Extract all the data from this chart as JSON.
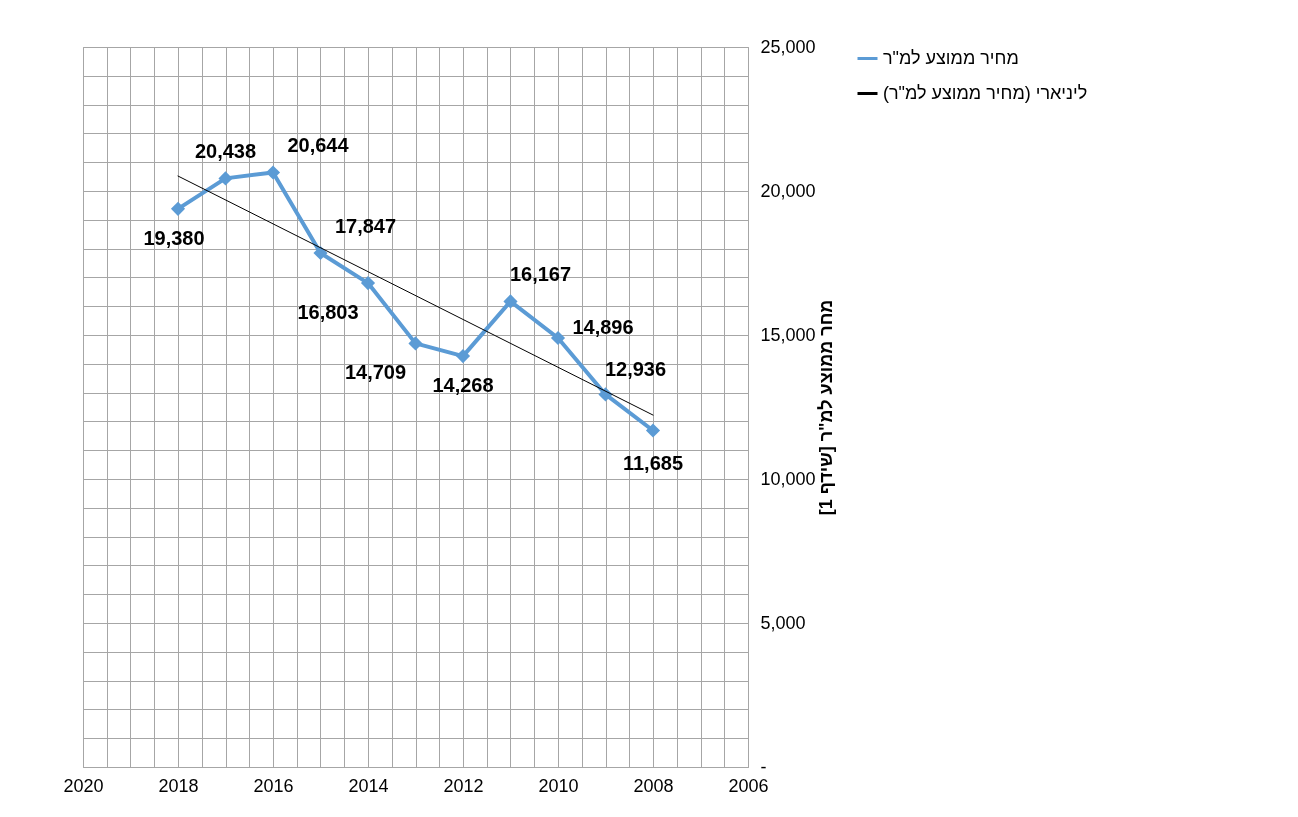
{
  "chart_data": {
    "type": "line",
    "ylabel": "מחר ממוצע למ\"ר [שידף 1]",
    "xlim": [
      2020,
      2006
    ],
    "xticks": [
      2020,
      {
        "value": 2019.5,
        "label": null
      },
      {
        "value": 2019,
        "label": null
      },
      {
        "value": 2018.5,
        "label": null
      },
      2018,
      {
        "value": 2017.5,
        "label": null
      },
      {
        "value": 2017,
        "label": null
      },
      {
        "value": 2016.5,
        "label": null
      },
      2016,
      {
        "value": 2015.5,
        "label": null
      },
      {
        "value": 2015,
        "label": null
      },
      {
        "value": 2014.5,
        "label": null
      },
      2014,
      {
        "value": 2013.5,
        "label": null
      },
      {
        "value": 2013,
        "label": null
      },
      {
        "value": 2012.5,
        "label": null
      },
      2012,
      {
        "value": 2011.5,
        "label": null
      },
      {
        "value": 2011,
        "label": null
      },
      {
        "value": 2010.5,
        "label": null
      },
      2010,
      {
        "value": 2009.5,
        "label": null
      },
      {
        "value": 2009,
        "label": null
      },
      {
        "value": 2008.5,
        "label": null
      },
      2008,
      {
        "value": 2007.5,
        "label": null
      },
      {
        "value": 2007,
        "label": null
      },
      {
        "value": 2006.5,
        "label": null
      },
      2006
    ],
    "ylim": [
      0,
      25000
    ],
    "yticks": [
      {
        "value": 0,
        "label": "-"
      },
      {
        "value": 1000,
        "label": null
      },
      {
        "value": 2000,
        "label": null
      },
      {
        "value": 3000,
        "label": null
      },
      {
        "value": 4000,
        "label": null
      },
      {
        "value": 5000,
        "label": "5,000"
      },
      {
        "value": 6000,
        "label": null
      },
      {
        "value": 7000,
        "label": null
      },
      {
        "value": 8000,
        "label": null
      },
      {
        "value": 9000,
        "label": null
      },
      {
        "value": 10000,
        "label": "10,000"
      },
      {
        "value": 11000,
        "label": null
      },
      {
        "value": 12000,
        "label": null
      },
      {
        "value": 13000,
        "label": null
      },
      {
        "value": 14000,
        "label": null
      },
      {
        "value": 15000,
        "label": "15,000"
      },
      {
        "value": 16000,
        "label": null
      },
      {
        "value": 17000,
        "label": null
      },
      {
        "value": 18000,
        "label": null
      },
      {
        "value": 19000,
        "label": null
      },
      {
        "value": 20000,
        "label": "20,000"
      },
      {
        "value": 21000,
        "label": null
      },
      {
        "value": 22000,
        "label": null
      },
      {
        "value": 23000,
        "label": null
      },
      {
        "value": 24000,
        "label": null
      },
      {
        "value": 25000,
        "label": "25,000"
      }
    ],
    "grid": true,
    "legend": "right",
    "series": [
      {
        "name": "מחיר ממוצע למ\"ר",
        "color": "#5b9bd5",
        "marker": "diamond",
        "x": [
          2018,
          2017,
          2016,
          2015,
          2014,
          2013,
          2012,
          2011,
          2010,
          2009,
          2008
        ],
        "values": [
          19380,
          20438,
          20644,
          17847,
          16803,
          14709,
          14268,
          16167,
          14896,
          12936,
          11685
        ],
        "value_labels": [
          "19,380",
          "20,438",
          "20,644",
          "17,847",
          "16,803",
          "14,709",
          "14,268",
          "16,167",
          "14,896",
          "12,936",
          "11,685"
        ]
      },
      {
        "name": "ליניארי (מחיר ממוצע למ\"ר)",
        "color": "#000000",
        "marker": "none",
        "x": [
          2018,
          2008
        ],
        "values": [
          20520,
          12220
        ]
      }
    ]
  }
}
